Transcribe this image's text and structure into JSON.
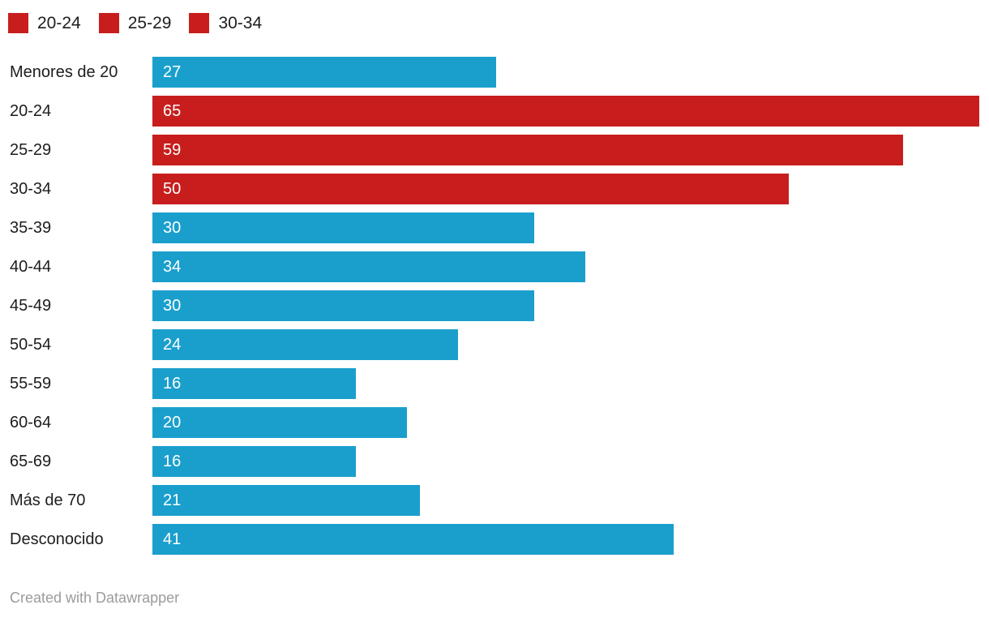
{
  "legend": {
    "position": "top-left",
    "entries": [
      {
        "label": "20-24",
        "color": "#c71e1d"
      },
      {
        "label": "25-29",
        "color": "#c71e1d"
      },
      {
        "label": "30-34",
        "color": "#c71e1d"
      }
    ]
  },
  "colors": {
    "bar_default": "#1a9fcd",
    "bar_highlight": "#c71e1d",
    "value_label": "#ffffff",
    "category_label": "#1d1d1d",
    "credit_text": "#9b9b9b",
    "background": "#ffffff"
  },
  "footer": {
    "credit": "Created with Datawrapper"
  },
  "chart_data": {
    "type": "bar",
    "orientation": "horizontal",
    "title": "",
    "xlabel": "",
    "ylabel": "",
    "xlim": [
      0,
      65
    ],
    "grid": false,
    "value_label_position": "inside-left",
    "legend_position": "top-left",
    "categories": [
      "Menores de 20",
      "20-24",
      "25-29",
      "30-34",
      "35-39",
      "40-44",
      "45-49",
      "50-54",
      "55-59",
      "60-64",
      "65-69",
      "Más de 70",
      "Desconocido"
    ],
    "values": [
      27,
      65,
      59,
      50,
      30,
      34,
      30,
      24,
      16,
      20,
      16,
      21,
      41
    ],
    "highlighted_categories": [
      "20-24",
      "25-29",
      "30-34"
    ],
    "bar_colors": [
      "#1a9fcd",
      "#c71e1d",
      "#c71e1d",
      "#c71e1d",
      "#1a9fcd",
      "#1a9fcd",
      "#1a9fcd",
      "#1a9fcd",
      "#1a9fcd",
      "#1a9fcd",
      "#1a9fcd",
      "#1a9fcd",
      "#1a9fcd"
    ]
  }
}
